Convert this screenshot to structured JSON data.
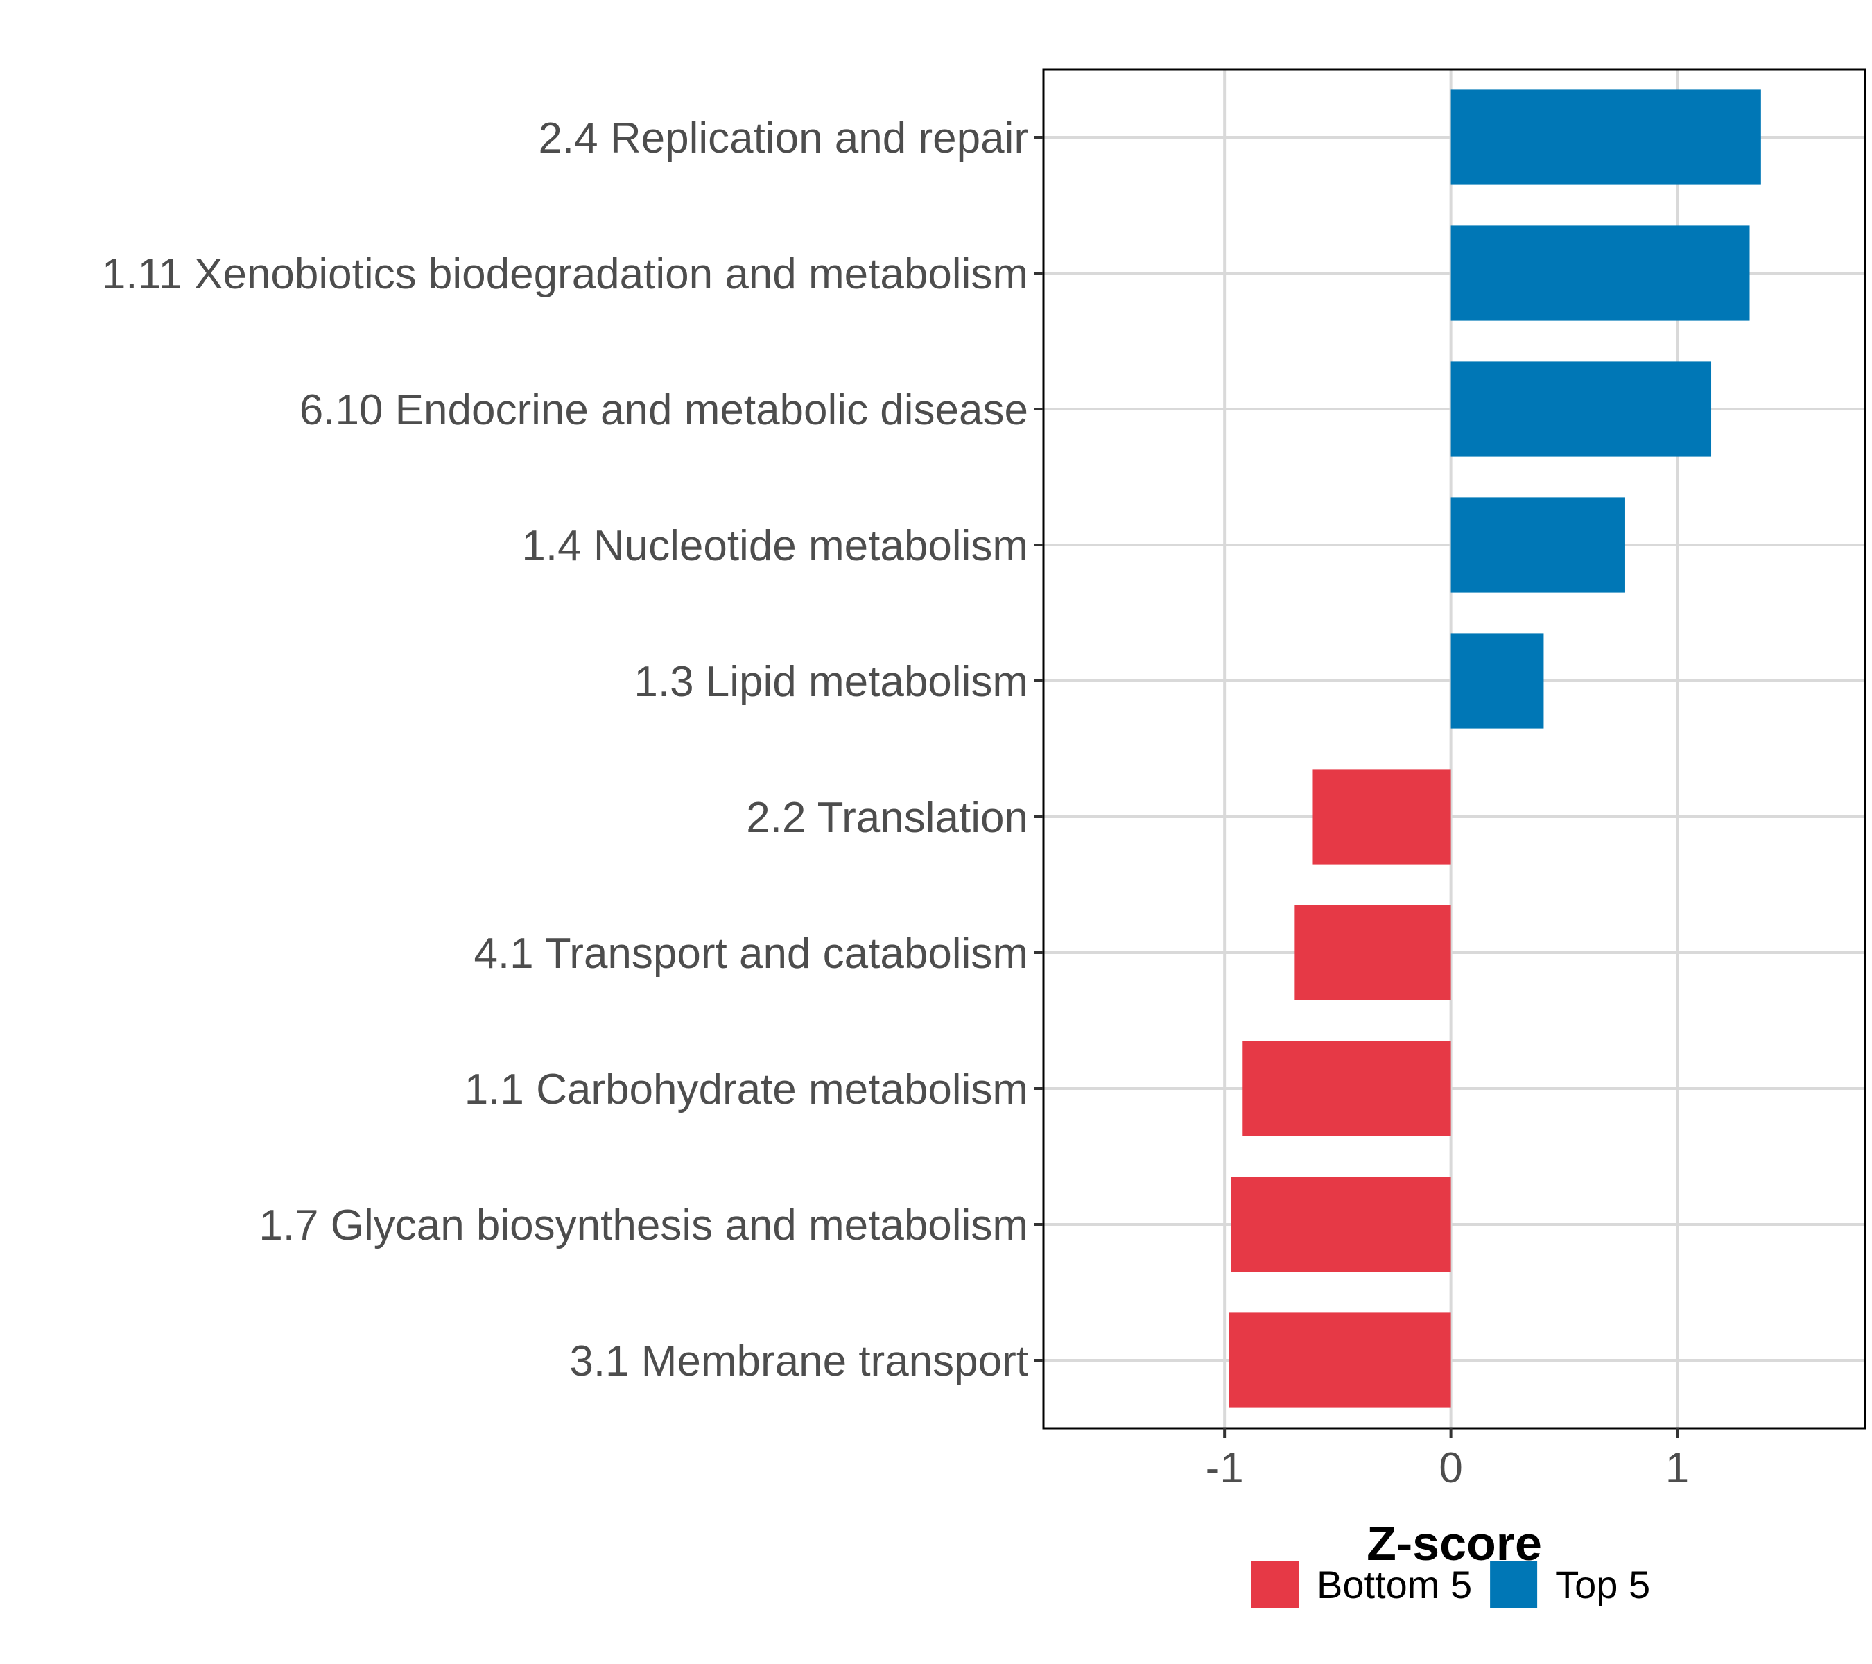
{
  "chart_data": {
    "type": "bar",
    "orientation": "horizontal",
    "title": "",
    "xlabel": "Z-score",
    "ylabel": "",
    "xlim": [
      -1.8,
      1.83
    ],
    "x_ticks": [
      -1,
      0,
      1
    ],
    "x_tick_labels": [
      "-1",
      "0",
      "1"
    ],
    "grid": true,
    "categories": [
      "2.4 Replication and repair",
      "1.11 Xenobiotics biodegradation and metabolism",
      "6.10 Endocrine and metabolic disease",
      "1.4 Nucleotide metabolism",
      "1.3 Lipid metabolism",
      "2.2 Translation",
      "4.1 Transport and catabolism",
      "1.1 Carbohydrate metabolism",
      "1.7 Glycan biosynthesis and metabolism",
      "3.1 Membrane transport"
    ],
    "values": [
      1.37,
      1.32,
      1.15,
      0.77,
      0.41,
      -0.61,
      -0.69,
      -0.92,
      -0.97,
      -0.98
    ],
    "groups": [
      "Top 5",
      "Top 5",
      "Top 5",
      "Top 5",
      "Top 5",
      "Bottom 5",
      "Bottom 5",
      "Bottom 5",
      "Bottom 5",
      "Bottom 5"
    ],
    "legend": {
      "placement": "bottom",
      "entries": [
        {
          "label": "Bottom 5",
          "color": "#E63946"
        },
        {
          "label": "Top 5",
          "color": "#0077B6"
        }
      ]
    },
    "colors": {
      "Top 5": "#0077B6",
      "Bottom 5": "#E63946"
    }
  }
}
